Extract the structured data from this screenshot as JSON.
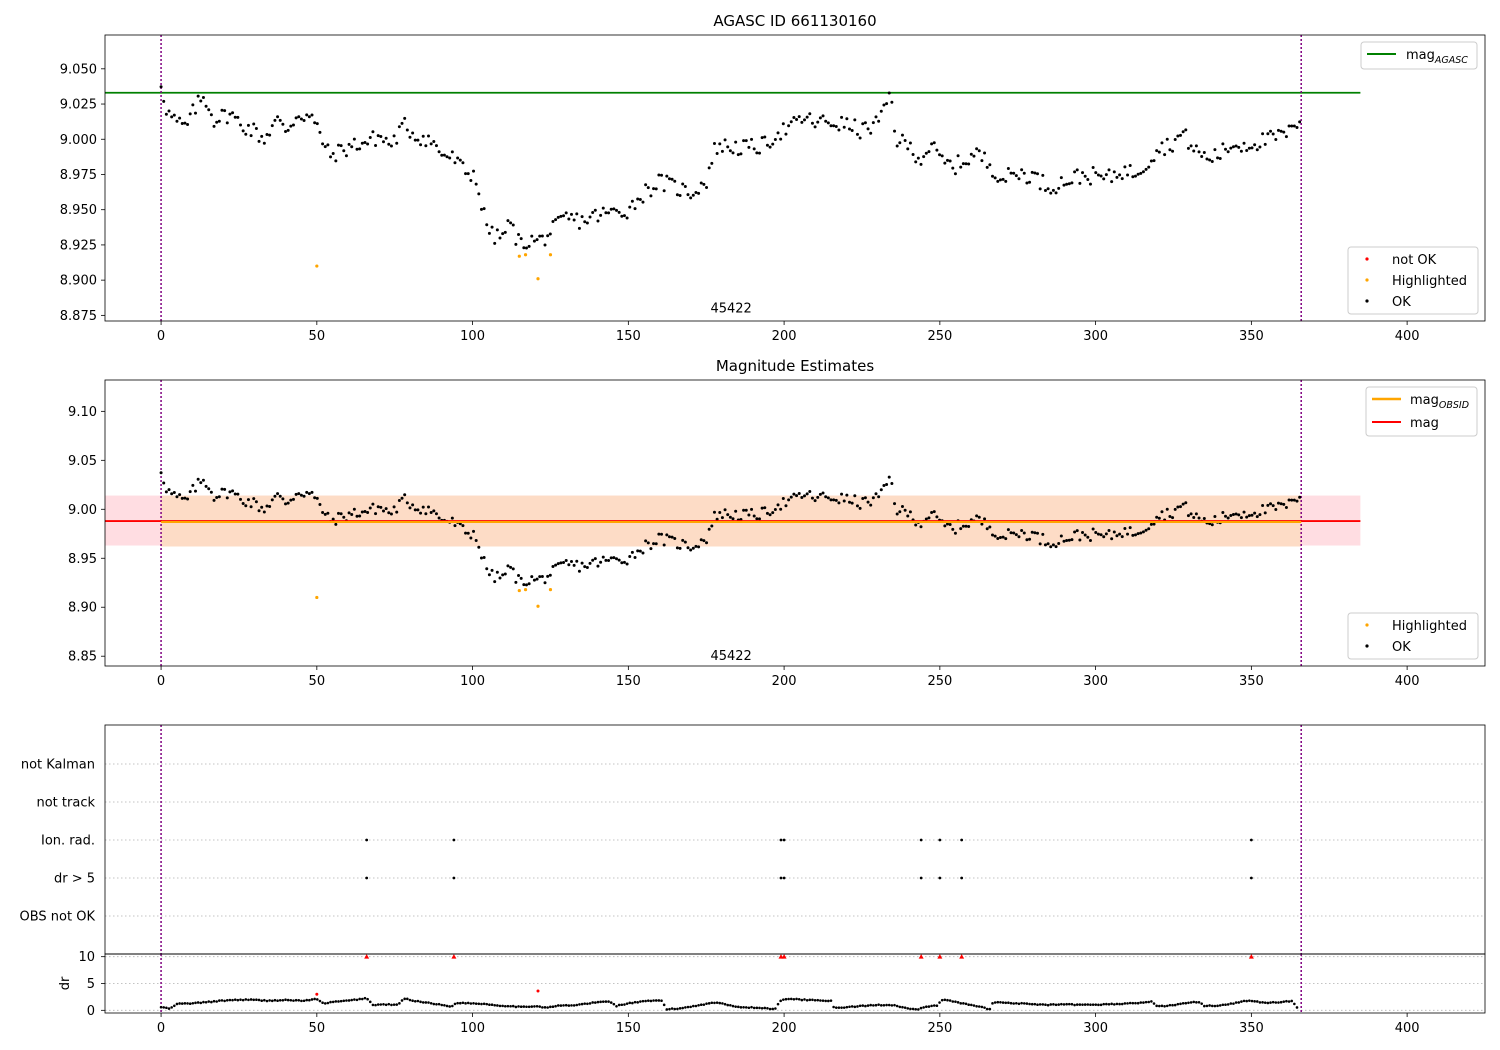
{
  "chart_data": [
    {
      "id": "agasc",
      "type": "scatter",
      "title": "AGASC ID 661130160",
      "xlim": [
        -18,
        425
      ],
      "ylim": [
        8.871,
        9.074
      ],
      "xticks": [
        0,
        50,
        100,
        150,
        200,
        250,
        300,
        350,
        400
      ],
      "yticks": [
        8.875,
        8.9,
        8.925,
        8.95,
        8.975,
        9.0,
        9.025,
        9.05
      ],
      "ytick_labels": [
        "8.875",
        "8.900",
        "8.925",
        "8.950",
        "8.975",
        "9.000",
        "9.025",
        "9.050"
      ],
      "annotation": {
        "text": "45422",
        "x": 183,
        "y": 8.877
      },
      "vlines": [
        0,
        366
      ],
      "hlines": [
        {
          "y": 9.033,
          "xmax": 385,
          "color": "#008000",
          "label": "mag",
          "label_sub": "AGASC"
        }
      ],
      "legend_upper": {
        "placement": "top-right"
      },
      "legend_lower": {
        "placement": "bottom-right",
        "entries": [
          {
            "label": "not OK",
            "color": "#ff0000"
          },
          {
            "label": "Highlighted",
            "color": "#ffa500"
          },
          {
            "label": "OK",
            "color": "#000000"
          }
        ]
      },
      "highlighted": [
        [
          50,
          8.91
        ],
        [
          115,
          8.917
        ],
        [
          117,
          8.918
        ],
        [
          121,
          8.901
        ],
        [
          125,
          8.918
        ]
      ],
      "ok_anchors": [
        [
          0,
          9.04
        ],
        [
          2,
          9.019
        ],
        [
          5,
          9.012
        ],
        [
          8,
          9.008
        ],
        [
          10,
          9.018
        ],
        [
          12,
          9.026
        ],
        [
          14,
          9.03
        ],
        [
          17,
          9.014
        ],
        [
          22,
          9.018
        ],
        [
          26,
          9.01
        ],
        [
          30,
          9.006
        ],
        [
          33,
          9.0
        ],
        [
          37,
          9.014
        ],
        [
          40,
          9.006
        ],
        [
          44,
          9.018
        ],
        [
          48,
          9.016
        ],
        [
          51,
          9.004
        ],
        [
          54,
          8.988
        ],
        [
          58,
          8.992
        ],
        [
          62,
          8.996
        ],
        [
          66,
          8.998
        ],
        [
          70,
          9.002
        ],
        [
          74,
          8.996
        ],
        [
          78,
          9.01
        ],
        [
          82,
          9.002
        ],
        [
          86,
          9.0
        ],
        [
          90,
          8.99
        ],
        [
          94,
          8.986
        ],
        [
          98,
          8.976
        ],
        [
          101,
          8.975
        ],
        [
          103,
          8.95
        ],
        [
          106,
          8.932
        ],
        [
          109,
          8.93
        ],
        [
          112,
          8.94
        ],
        [
          115,
          8.926
        ],
        [
          118,
          8.928
        ],
        [
          122,
          8.928
        ],
        [
          126,
          8.936
        ],
        [
          130,
          8.944
        ],
        [
          135,
          8.942
        ],
        [
          140,
          8.946
        ],
        [
          145,
          8.948
        ],
        [
          150,
          8.95
        ],
        [
          155,
          8.962
        ],
        [
          160,
          8.97
        ],
        [
          165,
          8.966
        ],
        [
          170,
          8.962
        ],
        [
          175,
          8.97
        ],
        [
          178,
          8.995
        ],
        [
          182,
          8.995
        ],
        [
          186,
          8.994
        ],
        [
          190,
          8.994
        ],
        [
          194,
          8.996
        ],
        [
          198,
          9.005
        ],
        [
          202,
          9.008
        ],
        [
          206,
          9.015
        ],
        [
          210,
          9.012
        ],
        [
          215,
          9.012
        ],
        [
          220,
          9.01
        ],
        [
          225,
          9.006
        ],
        [
          229,
          9.01
        ],
        [
          232,
          9.018
        ],
        [
          234,
          9.034
        ],
        [
          236,
          9.0
        ],
        [
          240,
          8.995
        ],
        [
          244,
          8.986
        ],
        [
          247,
          8.996
        ],
        [
          250,
          8.986
        ],
        [
          254,
          8.98
        ],
        [
          258,
          8.985
        ],
        [
          262,
          8.99
        ],
        [
          266,
          8.982
        ],
        [
          270,
          8.972
        ],
        [
          275,
          8.976
        ],
        [
          280,
          8.974
        ],
        [
          285,
          8.966
        ],
        [
          290,
          8.97
        ],
        [
          295,
          8.974
        ],
        [
          300,
          8.974
        ],
        [
          304,
          8.972
        ],
        [
          308,
          8.978
        ],
        [
          312,
          8.976
        ],
        [
          316,
          8.982
        ],
        [
          320,
          8.994
        ],
        [
          324,
          8.996
        ],
        [
          328,
          9.004
        ],
        [
          332,
          8.992
        ],
        [
          336,
          8.986
        ],
        [
          340,
          8.99
        ],
        [
          344,
          8.996
        ],
        [
          348,
          8.996
        ],
        [
          352,
          8.998
        ],
        [
          356,
          9.0
        ],
        [
          360,
          9.003
        ],
        [
          363,
          9.005
        ],
        [
          366,
          9.018
        ]
      ]
    },
    {
      "id": "estimates",
      "type": "scatter",
      "title": "Magnitude Estimates",
      "xlim": [
        -18,
        425
      ],
      "ylim": [
        8.84,
        9.132
      ],
      "xticks": [
        0,
        50,
        100,
        150,
        200,
        250,
        300,
        350,
        400
      ],
      "yticks": [
        8.85,
        8.9,
        8.95,
        9.0,
        9.05,
        9.1
      ],
      "ytick_labels": [
        "8.85",
        "8.90",
        "8.95",
        "9.00",
        "9.05",
        "9.10"
      ],
      "annotation": {
        "text": "45422",
        "x": 183,
        "y": 8.846
      },
      "vlines": [
        0,
        366
      ],
      "mag_obsid": {
        "y": 8.987,
        "band": [
          8.962,
          9.014
        ],
        "x": [
          0,
          366
        ],
        "color": "#ffa500",
        "label": "mag",
        "label_sub": "OBSID"
      },
      "mag": {
        "y": 8.988,
        "band": [
          8.963,
          9.014
        ],
        "xmax": 385,
        "color": "#ff0000",
        "label": "mag"
      },
      "legend_upper": {
        "placement": "top-right"
      },
      "legend_lower": {
        "placement": "bottom-right",
        "entries": [
          {
            "label": "Highlighted",
            "color": "#ffa500"
          },
          {
            "label": "OK",
            "color": "#000000"
          }
        ]
      }
    },
    {
      "id": "flags",
      "type": "scatter",
      "xlim": [
        -18,
        425
      ],
      "categories": [
        "OBS not OK",
        "dr > 5",
        "Ion. rad.",
        "not track",
        "not Kalman"
      ],
      "points": {
        "dr > 5": [
          66,
          94,
          199,
          200,
          244,
          250,
          257,
          350
        ],
        "Ion. rad.": [
          66,
          94,
          199,
          200,
          244,
          250,
          257,
          350
        ]
      },
      "vlines": [
        0,
        366
      ]
    },
    {
      "id": "dr",
      "type": "scatter",
      "ylabel": "dr",
      "xlim": [
        -18,
        425
      ],
      "ylim": [
        -0.5,
        10.5
      ],
      "xticks": [
        0,
        50,
        100,
        150,
        200,
        250,
        300,
        350,
        400
      ],
      "yticks": [
        0,
        5,
        10
      ],
      "ytick_labels": [
        "0",
        "5",
        "10"
      ],
      "xtick_labels": [
        "0",
        "50",
        "100",
        "150",
        "200",
        "250",
        "300",
        "350",
        "400"
      ],
      "vlines": [
        0,
        366
      ],
      "red_points": [
        [
          50,
          3.0
        ],
        [
          66,
          10
        ],
        [
          94,
          10
        ],
        [
          121,
          3.6
        ],
        [
          199,
          10
        ],
        [
          200,
          10
        ],
        [
          244,
          10
        ],
        [
          250,
          10
        ],
        [
          257,
          10
        ],
        [
          350,
          10
        ]
      ],
      "ok_anchors": [
        [
          0,
          0.6
        ],
        [
          3,
          0.3
        ],
        [
          5,
          1.2
        ],
        [
          10,
          1.3
        ],
        [
          16,
          1.6
        ],
        [
          22,
          1.9
        ],
        [
          28,
          2.0
        ],
        [
          34,
          1.8
        ],
        [
          40,
          1.9
        ],
        [
          46,
          1.8
        ],
        [
          50,
          2.1
        ],
        [
          52,
          1.3
        ],
        [
          56,
          1.6
        ],
        [
          60,
          1.8
        ],
        [
          64,
          2.1
        ],
        [
          66,
          2.3
        ],
        [
          68,
          1.0
        ],
        [
          72,
          1.1
        ],
        [
          76,
          1.0
        ],
        [
          78,
          2.2
        ],
        [
          82,
          1.7
        ],
        [
          86,
          1.4
        ],
        [
          90,
          1.0
        ],
        [
          93,
          0.7
        ],
        [
          95,
          1.4
        ],
        [
          100,
          1.3
        ],
        [
          104,
          1.2
        ],
        [
          108,
          0.9
        ],
        [
          112,
          0.8
        ],
        [
          116,
          0.6
        ],
        [
          120,
          0.8
        ],
        [
          124,
          0.5
        ],
        [
          128,
          0.9
        ],
        [
          132,
          0.9
        ],
        [
          136,
          1.2
        ],
        [
          140,
          1.5
        ],
        [
          144,
          1.7
        ],
        [
          146,
          0.8
        ],
        [
          150,
          1.3
        ],
        [
          154,
          1.6
        ],
        [
          158,
          1.8
        ],
        [
          161,
          1.8
        ],
        [
          162,
          0.2
        ],
        [
          166,
          0.3
        ],
        [
          170,
          0.7
        ],
        [
          174,
          1.1
        ],
        [
          178,
          1.5
        ],
        [
          182,
          1.0
        ],
        [
          186,
          0.6
        ],
        [
          190,
          0.5
        ],
        [
          194,
          0.4
        ],
        [
          197,
          0.2
        ],
        [
          199,
          1.9
        ],
        [
          201,
          2.2
        ],
        [
          205,
          2.0
        ],
        [
          210,
          1.9
        ],
        [
          215,
          1.8
        ],
        [
          216,
          0.4
        ],
        [
          220,
          0.6
        ],
        [
          225,
          0.8
        ],
        [
          230,
          1.0
        ],
        [
          235,
          1.0
        ],
        [
          240,
          0.3
        ],
        [
          243,
          0.1
        ],
        [
          245,
          0.6
        ],
        [
          249,
          0.9
        ],
        [
          251,
          2.0
        ],
        [
          255,
          1.6
        ],
        [
          258,
          1.2
        ],
        [
          262,
          0.8
        ],
        [
          266,
          0.2
        ],
        [
          267,
          1.5
        ],
        [
          272,
          1.4
        ],
        [
          278,
          1.2
        ],
        [
          284,
          1.0
        ],
        [
          290,
          1.1
        ],
        [
          296,
          1.0
        ],
        [
          302,
          1.1
        ],
        [
          308,
          1.2
        ],
        [
          314,
          1.4
        ],
        [
          318,
          1.6
        ],
        [
          320,
          0.7
        ],
        [
          325,
          1.0
        ],
        [
          330,
          1.4
        ],
        [
          333,
          1.6
        ],
        [
          335,
          0.8
        ],
        [
          340,
          0.9
        ],
        [
          345,
          1.4
        ],
        [
          348,
          1.8
        ],
        [
          350,
          1.7
        ],
        [
          355,
          1.4
        ],
        [
          360,
          1.5
        ],
        [
          363,
          1.8
        ],
        [
          365,
          0.2
        ]
      ]
    }
  ]
}
